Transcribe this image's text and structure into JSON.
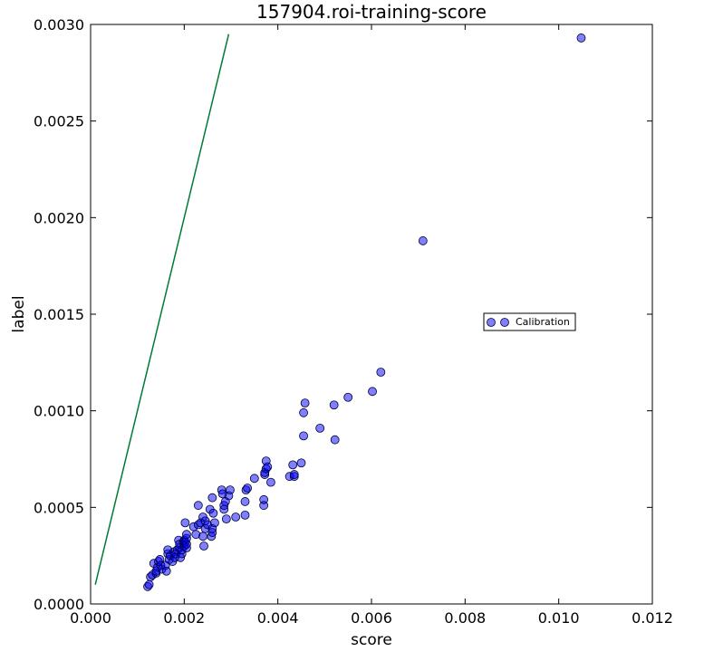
{
  "chart_data": {
    "type": "scatter",
    "title": "157904.roi-training-score",
    "xlabel": "score",
    "ylabel": "label",
    "xlim": [
      0.0,
      0.012
    ],
    "ylim": [
      0.0,
      0.003
    ],
    "x_ticks": [
      "0.000",
      "0.002",
      "0.004",
      "0.006",
      "0.008",
      "0.010",
      "0.012"
    ],
    "y_ticks": [
      "0.0000",
      "0.0005",
      "0.0010",
      "0.0015",
      "0.0020",
      "0.0025",
      "0.0030"
    ],
    "grid": false,
    "legend": {
      "placement": "center-right",
      "entries": [
        "Calibration"
      ]
    },
    "colors": {
      "points": "#0000ff",
      "reference_line": "#007a33"
    },
    "reference_line": {
      "x": [
        0.0001,
        0.00295
      ],
      "y": [
        0.0001,
        0.00295
      ]
    },
    "series": [
      {
        "name": "Calibration",
        "x": [
          0.00122,
          0.00125,
          0.00128,
          0.00132,
          0.00135,
          0.0014,
          0.0014,
          0.00143,
          0.00145,
          0.00148,
          0.0015,
          0.00152,
          0.0016,
          0.00162,
          0.00165,
          0.00165,
          0.00168,
          0.0017,
          0.00175,
          0.00178,
          0.0018,
          0.00182,
          0.00185,
          0.00188,
          0.0019,
          0.0019,
          0.00192,
          0.00195,
          0.00195,
          0.00198,
          0.002,
          0.002,
          0.00202,
          0.00202,
          0.00205,
          0.00205,
          0.00205,
          0.00205,
          0.0022,
          0.00225,
          0.0023,
          0.0023,
          0.00235,
          0.0024,
          0.0024,
          0.00242,
          0.00245,
          0.00245,
          0.0025,
          0.00255,
          0.00258,
          0.0026,
          0.0026,
          0.0026,
          0.00262,
          0.00265,
          0.0028,
          0.00282,
          0.00285,
          0.00285,
          0.00288,
          0.0029,
          0.00295,
          0.00298,
          0.0031,
          0.0033,
          0.0033,
          0.00332,
          0.00335,
          0.0035,
          0.0037,
          0.0037,
          0.00372,
          0.00372,
          0.00375,
          0.00375,
          0.00378,
          0.00385,
          0.00425,
          0.00432,
          0.00435,
          0.00435,
          0.0045,
          0.00455,
          0.00455,
          0.00458,
          0.0049,
          0.0052,
          0.00522,
          0.0055,
          0.00602,
          0.0062,
          0.0071,
          0.01048
        ],
        "y": [
          9e-05,
          0.0001,
          0.00014,
          0.00015,
          0.00021,
          0.00016,
          0.00017,
          0.00019,
          0.00022,
          0.00023,
          0.0002,
          0.00018,
          0.0002,
          0.00017,
          0.00026,
          0.00028,
          0.00023,
          0.00025,
          0.00022,
          0.00027,
          0.00024,
          0.00026,
          0.00028,
          0.00033,
          0.00029,
          0.00031,
          0.00024,
          0.00026,
          0.00028,
          0.00032,
          0.0003,
          0.00033,
          0.00032,
          0.00042,
          0.00029,
          0.00031,
          0.00034,
          0.00036,
          0.0004,
          0.00036,
          0.00041,
          0.00051,
          0.00042,
          0.00035,
          0.00045,
          0.0003,
          0.00039,
          0.00043,
          0.00041,
          0.00049,
          0.00035,
          0.00037,
          0.00039,
          0.00055,
          0.00047,
          0.00042,
          0.00059,
          0.00057,
          0.00049,
          0.00051,
          0.00053,
          0.00044,
          0.00056,
          0.00059,
          0.00045,
          0.00046,
          0.00053,
          0.00059,
          0.0006,
          0.00065,
          0.00051,
          0.00054,
          0.00067,
          0.00068,
          0.0007,
          0.00074,
          0.00071,
          0.00063,
          0.00066,
          0.00072,
          0.00066,
          0.00067,
          0.00073,
          0.00087,
          0.00099,
          0.00104,
          0.00091,
          0.00103,
          0.00085,
          0.00107,
          0.0011,
          0.0012,
          0.00188,
          0.00293
        ]
      }
    ]
  }
}
